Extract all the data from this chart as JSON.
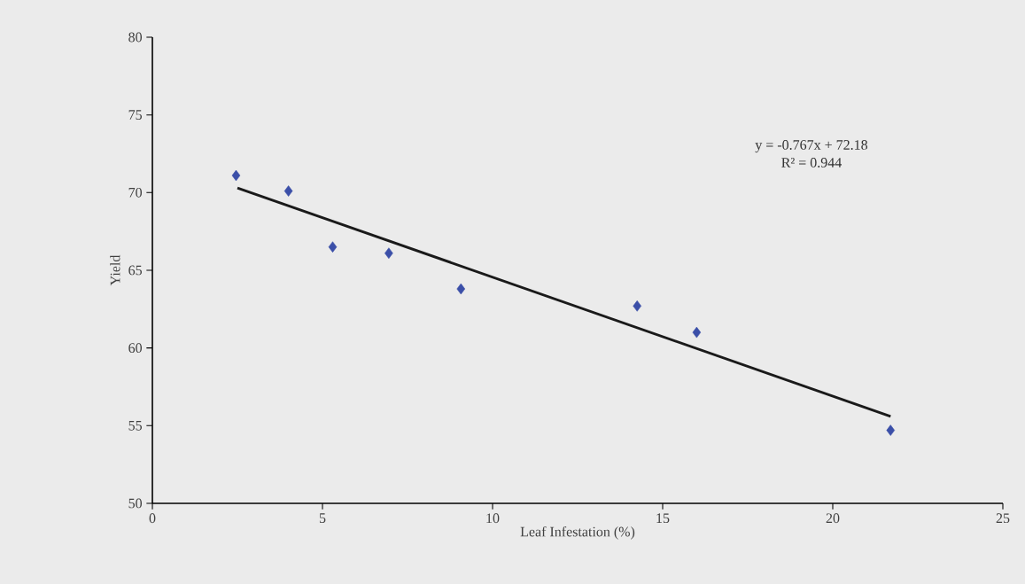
{
  "chart_data": {
    "type": "scatter",
    "xlabel": "Leaf Infestation (%)",
    "ylabel": "Yield",
    "xlim": [
      0,
      25
    ],
    "ylim": [
      50,
      80
    ],
    "xticks": [
      0,
      5,
      10,
      15,
      20,
      25
    ],
    "yticks": [
      50,
      55,
      60,
      65,
      70,
      75,
      80
    ],
    "marker": "diamond",
    "series": [
      {
        "color": "#3b4fa8",
        "x": [
          2.46,
          4.0,
          5.3,
          6.95,
          9.07,
          14.25,
          16.0,
          21.7
        ],
        "values": [
          71.1,
          70.1,
          66.5,
          66.1,
          63.8,
          62.7,
          61.0,
          54.7
        ]
      },
      {
        "type": "line",
        "color": "#1a1a1a",
        "marker": "none",
        "line_style": "solid",
        "x": [
          2.5,
          21.7
        ],
        "values": [
          70.3,
          55.6
        ]
      }
    ],
    "annotations": [
      "y = -0.767x + 72.18",
      "R² = 0.944"
    ]
  }
}
